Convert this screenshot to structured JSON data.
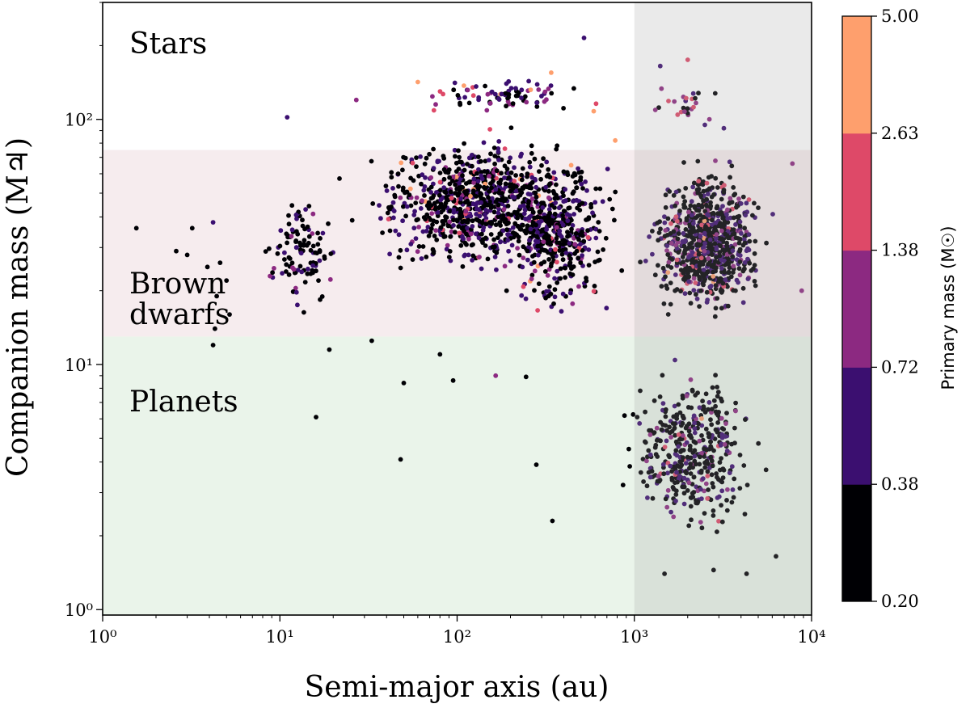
{
  "chart_data": {
    "type": "scatter",
    "title": "",
    "xlabel": "Semi-major axis (au)",
    "ylabel": "Companion mass (M♃)",
    "x_scale": "log",
    "y_scale": "log",
    "xlim": [
      1,
      10000
    ],
    "ylim": [
      0.95,
      300
    ],
    "x_ticks": [
      {
        "value": 1,
        "label": "10⁰"
      },
      {
        "value": 10,
        "label": "10¹"
      },
      {
        "value": 100,
        "label": "10²"
      },
      {
        "value": 1000,
        "label": "10³"
      },
      {
        "value": 10000,
        "label": "10⁴"
      }
    ],
    "y_ticks": [
      {
        "value": 1,
        "label": "10⁰"
      },
      {
        "value": 10,
        "label": "10¹"
      },
      {
        "value": 100,
        "label": "10²"
      }
    ],
    "regions": [
      {
        "label": "Stars",
        "y_range": [
          75,
          300
        ],
        "color": "#ffffff"
      },
      {
        "label": "Brown dwarfs",
        "label_lines": [
          "Brown",
          "dwarfs"
        ],
        "y_range": [
          13,
          75
        ],
        "color": "#f6ecee"
      },
      {
        "label": "Planets",
        "y_range": [
          0.95,
          13
        ],
        "color": "#eaf4ea"
      }
    ],
    "shaded_x_region": {
      "x_range": [
        1000,
        10000
      ],
      "color": "#a0a0a0",
      "opacity": 0.22
    },
    "colorbar": {
      "title": "Primary mass (M☉)",
      "ticks": [
        "0.20",
        "0.38",
        "0.72",
        "1.38",
        "2.63",
        "5.00"
      ],
      "bin_colors": [
        "#000004",
        "#3b0f70",
        "#8c2981",
        "#de4968",
        "#fe9f6d"
      ]
    },
    "color_legend_note": "Point color encodes primary-mass bin index 0-4 (0.20-0.38, 0.38-0.72, 0.72-1.38, 1.38-2.63, 2.63-5.00 M☉)",
    "clusters": [
      {
        "x_range": [
          20,
          1000
        ],
        "y_range": [
          20,
          100
        ],
        "count": 900,
        "primary_mass_mix": [
          0.62,
          0.28,
          0.06,
          0.025,
          0.015
        ]
      },
      {
        "x_range": [
          150,
          1000
        ],
        "y_range": [
          12,
          90
        ],
        "count": 350,
        "primary_mass_mix": [
          0.6,
          0.28,
          0.08,
          0.03,
          0.01
        ]
      },
      {
        "x_range": [
          1000,
          6500
        ],
        "y_range": [
          13,
          80
        ],
        "count": 800,
        "primary_mass_mix": [
          0.58,
          0.26,
          0.11,
          0.04,
          0.01
        ]
      },
      {
        "x_range": [
          700,
          6500
        ],
        "y_range": [
          1.5,
          13
        ],
        "count": 420,
        "primary_mass_mix": [
          0.68,
          0.2,
          0.08,
          0.03,
          0.01
        ]
      },
      {
        "x_range": [
          7,
          25
        ],
        "y_range": [
          14,
          60
        ],
        "count": 110,
        "primary_mass_mix": [
          0.75,
          0.2,
          0.05,
          0,
          0
        ]
      },
      {
        "x_range": [
          40,
          700
        ],
        "y_range": [
          100,
          160
        ],
        "count": 80,
        "primary_mass_mix": [
          0.3,
          0.35,
          0.2,
          0.1,
          0.05
        ]
      },
      {
        "x_range": [
          1000,
          3500
        ],
        "y_range": [
          80,
          170
        ],
        "count": 25,
        "primary_mass_mix": [
          0.2,
          0.3,
          0.3,
          0.2,
          0
        ]
      }
    ],
    "points": [
      {
        "x": 520,
        "y": 215,
        "c": 1
      },
      {
        "x": 1.55,
        "y": 36,
        "c": 0
      },
      {
        "x": 3.2,
        "y": 36,
        "c": 0
      },
      {
        "x": 2.6,
        "y": 29,
        "c": 0
      },
      {
        "x": 3.0,
        "y": 28,
        "c": 0
      },
      {
        "x": 4.2,
        "y": 38,
        "c": 1
      },
      {
        "x": 3.9,
        "y": 25,
        "c": 0
      },
      {
        "x": 4.6,
        "y": 26,
        "c": 0
      },
      {
        "x": 4.4,
        "y": 19,
        "c": 0
      },
      {
        "x": 5.0,
        "y": 22,
        "c": 0
      },
      {
        "x": 4.3,
        "y": 14,
        "c": 0
      },
      {
        "x": 4.2,
        "y": 12,
        "c": 0
      },
      {
        "x": 5.2,
        "y": 16,
        "c": 0
      },
      {
        "x": 16,
        "y": 6.1,
        "c": 0
      },
      {
        "x": 48,
        "y": 4.1,
        "c": 0
      },
      {
        "x": 11,
        "y": 102,
        "c": 1
      },
      {
        "x": 27,
        "y": 120,
        "c": 2
      },
      {
        "x": 33,
        "y": 12.5,
        "c": 0
      },
      {
        "x": 50,
        "y": 8.4,
        "c": 0
      },
      {
        "x": 95,
        "y": 8.6,
        "c": 0
      },
      {
        "x": 165,
        "y": 9.0,
        "c": 2
      },
      {
        "x": 245,
        "y": 8.9,
        "c": 0
      },
      {
        "x": 280,
        "y": 3.9,
        "c": 0
      },
      {
        "x": 345,
        "y": 2.3,
        "c": 0
      },
      {
        "x": 19,
        "y": 11.5,
        "c": 0
      },
      {
        "x": 80,
        "y": 11,
        "c": 0
      },
      {
        "x": 1480,
        "y": 1.4,
        "c": 0
      },
      {
        "x": 2030,
        "y": 2.2,
        "c": 0
      },
      {
        "x": 2800,
        "y": 1.45,
        "c": 0
      },
      {
        "x": 4300,
        "y": 1.4,
        "c": 0
      },
      {
        "x": 6300,
        "y": 1.65,
        "c": 0
      },
      {
        "x": 2000,
        "y": 175,
        "c": 3
      },
      {
        "x": 1400,
        "y": 165,
        "c": 1
      },
      {
        "x": 3200,
        "y": 92,
        "c": 1
      },
      {
        "x": 2500,
        "y": 95,
        "c": 1
      },
      {
        "x": 8800,
        "y": 20,
        "c": 2
      },
      {
        "x": 7800,
        "y": 66,
        "c": 2
      },
      {
        "x": 60,
        "y": 142,
        "c": 4
      },
      {
        "x": 260,
        "y": 132,
        "c": 4
      },
      {
        "x": 590,
        "y": 108,
        "c": 4
      },
      {
        "x": 780,
        "y": 82,
        "c": 4
      },
      {
        "x": 440,
        "y": 65,
        "c": 4
      }
    ]
  }
}
